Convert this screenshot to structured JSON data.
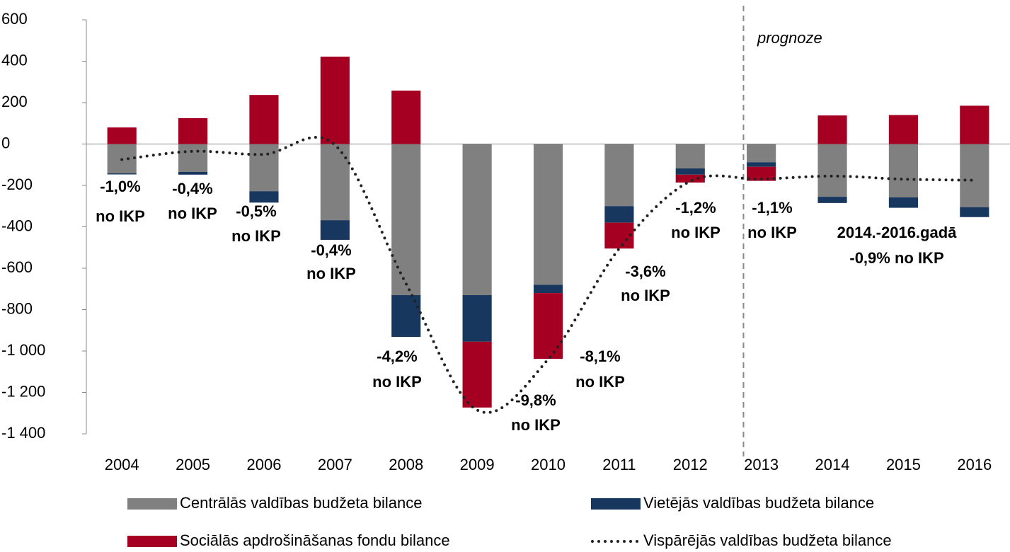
{
  "chart_data": {
    "type": "bar",
    "stacked": true,
    "categories": [
      "2004",
      "2005",
      "2006",
      "2007",
      "2008",
      "2009",
      "2010",
      "2011",
      "2012",
      "2013",
      "2014",
      "2015",
      "2016"
    ],
    "series": [
      {
        "name": "Centrālās valdības budžeta bilance",
        "color": "#808080",
        "values": [
          -142,
          -135,
          -228,
          -368,
          -730,
          -730,
          -680,
          -300,
          -118,
          -88,
          -255,
          -258,
          -305
        ]
      },
      {
        "name": "Vietējās valdības budžeta bilance",
        "color": "#17375e",
        "values": [
          -5,
          -13,
          -55,
          -95,
          -202,
          -225,
          -40,
          -80,
          -30,
          -22,
          -30,
          -50,
          -48
        ]
      },
      {
        "name": "Sociālās apdrošināšanas fondu bilance",
        "color": "#a50021",
        "values": [
          80,
          125,
          237,
          422,
          258,
          -318,
          -318,
          -125,
          -38,
          -68,
          138,
          140,
          185
        ]
      },
      {
        "name": "Vispārējās valdības budžeta bilance",
        "color": "#222222",
        "type": "line",
        "dash": "dotted",
        "values": [
          -75,
          -35,
          -50,
          -5,
          -675,
          -1285,
          -1040,
          -505,
          -180,
          -170,
          -155,
          -170,
          -175
        ]
      }
    ],
    "ylim": [
      -1400,
      600
    ],
    "yticks": [
      {
        "value": 600,
        "label": "600"
      },
      {
        "value": 400,
        "label": "400"
      },
      {
        "value": 200,
        "label": "200"
      },
      0,
      {
        "value": -200,
        "label": "-200"
      },
      {
        "value": -400,
        "label": "-400"
      },
      {
        "value": -600,
        "label": "-600"
      },
      {
        "value": -800,
        "label": "-800"
      },
      {
        "value": -1000,
        "label": "-1 000"
      },
      {
        "value": -1200,
        "label": "-1 200"
      },
      {
        "value": -1400,
        "label": "-1 400"
      }
    ],
    "forecast_label": "prognoze",
    "annotations": [
      [
        "-1,0%",
        "no IKP"
      ],
      [
        "-0,4%",
        "no IKP"
      ],
      [
        "-0,5%",
        "no IKP"
      ],
      [
        "-0,4%",
        "no IKP"
      ],
      [
        "-4,2%",
        "no IKP"
      ],
      [
        "-9,8%",
        "no IKP"
      ],
      [
        "-8,1%",
        "no IKP"
      ],
      [
        "-3,6%",
        "no IKP"
      ],
      [
        "-1,2%",
        "no IKP"
      ],
      [
        "-1,1%",
        "no IKP"
      ],
      [
        "2014.-2016.gadā",
        "-0,9% no IKP"
      ]
    ]
  }
}
